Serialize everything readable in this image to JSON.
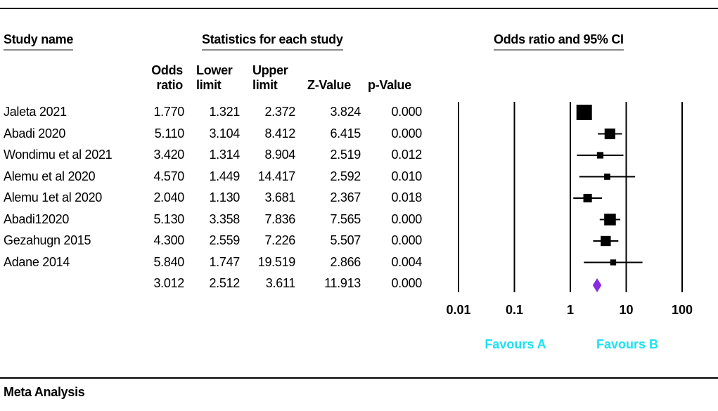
{
  "headers": {
    "study_name": "Study name",
    "statistics": "Statistics for each study",
    "plot": "Odds ratio and 95% CI"
  },
  "columns": {
    "odds": "Odds\nratio",
    "lower": "Lower\nlimit",
    "upper": "Upper\nlimit",
    "z": "Z-Value",
    "p": "p-Value"
  },
  "footer": "Meta Analysis",
  "chart_data": {
    "type": "forest",
    "xscale": "log",
    "xlim": [
      0.01,
      100
    ],
    "xticks": [
      "0.01",
      "0.1",
      "1",
      "10",
      "100"
    ],
    "xtick_values": [
      0.01,
      0.1,
      1,
      10,
      100
    ],
    "favours": [
      "Favours A",
      "Favours B"
    ],
    "marker_color": "#000000",
    "summary_color": "#8a2be2",
    "label_color": "#20e0f0",
    "studies": [
      {
        "name": "Jaleta 2021",
        "or": "1.770",
        "lower": "1.321",
        "upper": "2.372",
        "z": "3.824",
        "p": "0.000",
        "or_v": 1.77,
        "lo_v": 1.321,
        "hi_v": 2.372,
        "weight": 1.0
      },
      {
        "name": "Abadi 2020",
        "or": "5.110",
        "lower": "3.104",
        "upper": "8.412",
        "z": "6.415",
        "p": "0.000",
        "or_v": 5.11,
        "lo_v": 3.104,
        "hi_v": 8.412,
        "weight": 0.6
      },
      {
        "name": "Wondimu et al 2021",
        "or": "3.420",
        "lower": "1.314",
        "upper": "8.904",
        "z": "2.519",
        "p": "0.012",
        "or_v": 3.42,
        "lo_v": 1.314,
        "hi_v": 8.904,
        "weight": 0.25
      },
      {
        "name": "Alemu et al 2020",
        "or": "4.570",
        "lower": "1.449",
        "upper": "14.417",
        "z": "2.592",
        "p": "0.010",
        "or_v": 4.57,
        "lo_v": 1.449,
        "hi_v": 14.417,
        "weight": 0.22
      },
      {
        "name": "Alemu 1et al 2020",
        "or": "2.040",
        "lower": "1.130",
        "upper": "3.681",
        "z": "2.367",
        "p": "0.018",
        "or_v": 2.04,
        "lo_v": 1.13,
        "hi_v": 3.681,
        "weight": 0.42
      },
      {
        "name": "Abadi12020",
        "or": "5.130",
        "lower": "3.358",
        "upper": "7.836",
        "z": "7.565",
        "p": "0.000",
        "or_v": 5.13,
        "lo_v": 3.358,
        "hi_v": 7.836,
        "weight": 0.68
      },
      {
        "name": "Gezahugn 2015",
        "or": "4.300",
        "lower": "2.559",
        "upper": "7.226",
        "z": "5.507",
        "p": "0.000",
        "or_v": 4.3,
        "lo_v": 2.559,
        "hi_v": 7.226,
        "weight": 0.55
      },
      {
        "name": "Adane 2014",
        "or": "5.840",
        "lower": "1.747",
        "upper": "19.519",
        "z": "2.866",
        "p": "0.004",
        "or_v": 5.84,
        "lo_v": 1.747,
        "hi_v": 19.519,
        "weight": 0.2
      }
    ],
    "summary": {
      "or": "3.012",
      "lower": "2.512",
      "upper": "3.611",
      "z": "11.913",
      "p": "0.000",
      "or_v": 3.012,
      "lo_v": 2.512,
      "hi_v": 3.611
    }
  }
}
